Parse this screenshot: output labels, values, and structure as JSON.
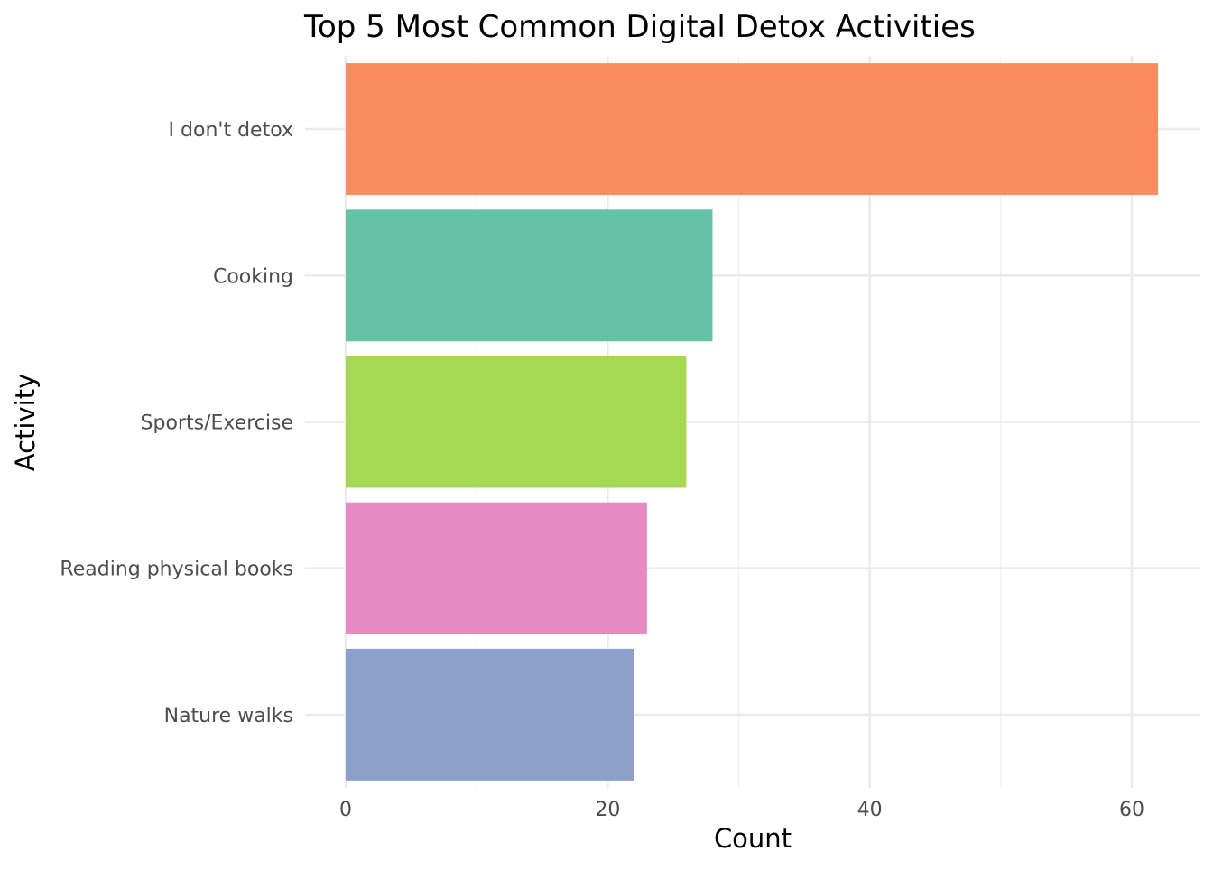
{
  "chart_data": {
    "type": "bar",
    "orientation": "horizontal",
    "title": "Top 5 Most Common Digital Detox Activities",
    "xlabel": "Count",
    "ylabel": "Activity",
    "categories": [
      "I don't detox",
      "Cooking",
      "Sports/Exercise",
      "Reading physical books",
      "Nature walks"
    ],
    "values": [
      62,
      28,
      26,
      23,
      22
    ],
    "colors": [
      "#fc8d62",
      "#66c2a5",
      "#a6d854",
      "#e78ac3",
      "#8da0cb"
    ],
    "xlim": [
      0,
      65
    ],
    "x_ticks": [
      0,
      20,
      40,
      60
    ],
    "x_minor_ticks": [
      10,
      30,
      50
    ],
    "x_tick_labels": [
      "0",
      "20",
      "40",
      "60"
    ],
    "grid": true,
    "legend": "none"
  }
}
